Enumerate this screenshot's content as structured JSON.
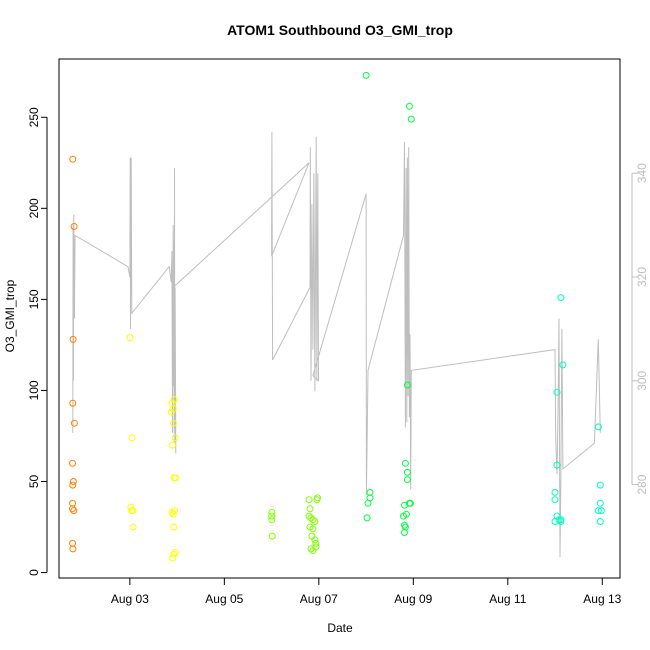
{
  "chart_data": {
    "type": "scatter",
    "title": "ATOM1 Southbound O3_GMI_trop",
    "xlabel": "Date",
    "ylabel": "O3_GMI_trop",
    "x_ticks": [
      "Aug 03",
      "Aug 05",
      "Aug 07",
      "Aug 09",
      "Aug 11",
      "Aug 13"
    ],
    "xlim": [
      "2016-08-01T12:00",
      "2016-08-13T09:00"
    ],
    "ylim": [
      -3,
      282
    ],
    "y_ticks": [
      0,
      50,
      100,
      150,
      200,
      250
    ],
    "y2lim": [
      262,
      362
    ],
    "y2_ticks": [
      280,
      300,
      320,
      340
    ],
    "grid": false,
    "colors": {
      "flight1": "#ff8000",
      "flight2": "#ffff00",
      "flight3": "#80ff00",
      "flight4": "#00ff40",
      "flight5": "#00ffbf",
      "secondary_line": "#bebebe"
    },
    "series": [
      {
        "color_key": "flight1",
        "points": [
          [
            "2016-08-01T19:00",
            227
          ],
          [
            "2016-08-01T19:10",
            128
          ],
          [
            "2016-08-01T19:00",
            93
          ],
          [
            "2016-08-01T18:50",
            60
          ],
          [
            "2016-08-01T19:00",
            48
          ],
          [
            "2016-08-01T19:20",
            50
          ],
          [
            "2016-08-01T18:55",
            38
          ],
          [
            "2016-08-01T18:50",
            35
          ],
          [
            "2016-08-01T19:30",
            34
          ],
          [
            "2016-08-01T18:55",
            16
          ],
          [
            "2016-08-01T19:05",
            13
          ],
          [
            "2016-08-01T19:40",
            190
          ],
          [
            "2016-08-01T19:50",
            82
          ]
        ]
      },
      {
        "color_key": "flight2",
        "points": [
          [
            "2016-08-03T00:00",
            129
          ],
          [
            "2016-08-03T01:00",
            74
          ],
          [
            "2016-08-03T00:30",
            36
          ],
          [
            "2016-08-03T01:00",
            34
          ],
          [
            "2016-08-03T01:30",
            34
          ],
          [
            "2016-08-03T01:40",
            25
          ],
          [
            "2016-08-03T21:00",
            88
          ],
          [
            "2016-08-03T21:30",
            93
          ],
          [
            "2016-08-03T22:00",
            90
          ],
          [
            "2016-08-03T22:30",
            95
          ],
          [
            "2016-08-03T21:40",
            70
          ],
          [
            "2016-08-03T22:10",
            82
          ],
          [
            "2016-08-03T23:00",
            74
          ],
          [
            "2016-08-03T22:30",
            52
          ],
          [
            "2016-08-03T23:10",
            52
          ],
          [
            "2016-08-03T21:30",
            33
          ],
          [
            "2016-08-03T22:00",
            32
          ],
          [
            "2016-08-03T22:40",
            34
          ],
          [
            "2016-08-03T22:20",
            25
          ],
          [
            "2016-08-03T21:40",
            8
          ],
          [
            "2016-08-03T22:20",
            10
          ],
          [
            "2016-08-03T23:00",
            11
          ]
        ]
      },
      {
        "color_key": "flight3",
        "points": [
          [
            "2016-08-06T00:00",
            31
          ],
          [
            "2016-08-06T00:10",
            33
          ],
          [
            "2016-08-06T00:05",
            29
          ],
          [
            "2016-08-06T00:20",
            20
          ],
          [
            "2016-08-06T19:00",
            40
          ],
          [
            "2016-08-06T19:30",
            35
          ],
          [
            "2016-08-06T19:00",
            31
          ],
          [
            "2016-08-06T20:00",
            30
          ],
          [
            "2016-08-06T21:00",
            29
          ],
          [
            "2016-08-06T22:00",
            28
          ],
          [
            "2016-08-06T19:30",
            25
          ],
          [
            "2016-08-06T21:00",
            24
          ],
          [
            "2016-08-06T20:30",
            20
          ],
          [
            "2016-08-06T22:00",
            18
          ],
          [
            "2016-08-06T22:30",
            16
          ],
          [
            "2016-08-06T20:00",
            13
          ],
          [
            "2016-08-06T21:00",
            12
          ],
          [
            "2016-08-06T22:30",
            14
          ],
          [
            "2016-08-06T23:00",
            40
          ],
          [
            "2016-08-06T23:20",
            41
          ]
        ]
      },
      {
        "color_key": "flight4",
        "points": [
          [
            "2016-08-08T00:00",
            273
          ],
          [
            "2016-08-08T02:00",
            44
          ],
          [
            "2016-08-08T02:00",
            41
          ],
          [
            "2016-08-08T01:00",
            38
          ],
          [
            "2016-08-08T00:30",
            30
          ],
          [
            "2016-08-08T20:00",
            60
          ],
          [
            "2016-08-08T21:00",
            55
          ],
          [
            "2016-08-08T21:00",
            51
          ],
          [
            "2016-08-08T22:00",
            38
          ],
          [
            "2016-08-08T22:30",
            38
          ],
          [
            "2016-08-08T19:30",
            37
          ],
          [
            "2016-08-08T20:30",
            32
          ],
          [
            "2016-08-08T19:00",
            31
          ],
          [
            "2016-08-08T19:30",
            26
          ],
          [
            "2016-08-08T20:00",
            25
          ],
          [
            "2016-08-08T19:30",
            22
          ],
          [
            "2016-08-08T22:00",
            256
          ],
          [
            "2016-08-08T23:00",
            249
          ],
          [
            "2016-08-08T21:00",
            103
          ]
        ]
      },
      {
        "color_key": "flight5",
        "points": [
          [
            "2016-08-12T03:00",
            151
          ],
          [
            "2016-08-12T04:00",
            114
          ],
          [
            "2016-08-12T01:00",
            99
          ],
          [
            "2016-08-12T01:00",
            59
          ],
          [
            "2016-08-12T00:00",
            44
          ],
          [
            "2016-08-12T00:00",
            40
          ],
          [
            "2016-08-12T01:00",
            31
          ],
          [
            "2016-08-12T00:00",
            28
          ],
          [
            "2016-08-12T02:00",
            29
          ],
          [
            "2016-08-12T03:00",
            28
          ],
          [
            "2016-08-12T03:00",
            29
          ],
          [
            "2016-08-12T22:00",
            80
          ],
          [
            "2016-08-12T23:00",
            48
          ],
          [
            "2016-08-12T23:00",
            38
          ],
          [
            "2016-08-12T23:30",
            34
          ],
          [
            "2016-08-12T22:00",
            34
          ],
          [
            "2016-08-12T23:00",
            28
          ]
        ]
      }
    ],
    "secondary_line": {
      "name": "",
      "points": [
        [
          "2016-08-01T19:00",
          290
        ],
        [
          "2016-08-01T19:10",
          330
        ],
        [
          "2016-08-01T19:20",
          300
        ],
        [
          "2016-08-01T19:30",
          332
        ],
        [
          "2016-08-01T19:50",
          312
        ],
        [
          "2016-08-01T20:10",
          328
        ],
        [
          "2016-08-02T23:00",
          322
        ],
        [
          "2016-08-03T00:00",
          320
        ],
        [
          "2016-08-03T00:10",
          343
        ],
        [
          "2016-08-03T00:20",
          310
        ],
        [
          "2016-08-03T00:40",
          343
        ],
        [
          "2016-08-03T01:00",
          313
        ],
        [
          "2016-08-03T20:00",
          322
        ],
        [
          "2016-08-03T21:00",
          319
        ],
        [
          "2016-08-03T21:20",
          325
        ],
        [
          "2016-08-03T21:40",
          290
        ],
        [
          "2016-08-03T22:00",
          330
        ],
        [
          "2016-08-03T22:10",
          299
        ],
        [
          "2016-08-03T22:20",
          327
        ],
        [
          "2016-08-03T22:30",
          288
        ],
        [
          "2016-08-03T22:40",
          341
        ],
        [
          "2016-08-03T22:50",
          296
        ],
        [
          "2016-08-03T23:00",
          318
        ],
        [
          "2016-08-03T23:20",
          286
        ],
        [
          "2016-08-03T22:00",
          318
        ],
        [
          "2016-08-06T19:00",
          342
        ],
        [
          "2016-08-06T00:00",
          324
        ],
        [
          "2016-08-06T00:10",
          348
        ],
        [
          "2016-08-06T00:20",
          329
        ],
        [
          "2016-08-06T00:30",
          304
        ],
        [
          "2016-08-06T19:30",
          318
        ],
        [
          "2016-08-06T19:40",
          345
        ],
        [
          "2016-08-06T20:00",
          300
        ],
        [
          "2016-08-06T20:30",
          334
        ],
        [
          "2016-08-06T21:00",
          306
        ],
        [
          "2016-08-06T21:30",
          340
        ],
        [
          "2016-08-06T22:00",
          298
        ],
        [
          "2016-08-06T22:40",
          347
        ],
        [
          "2016-08-06T23:00",
          300
        ],
        [
          "2016-08-06T23:30",
          340
        ],
        [
          "2016-08-06T23:50",
          300
        ],
        [
          "2016-08-06T21:00",
          301
        ],
        [
          "2016-08-08T00:00",
          336
        ],
        [
          "2016-08-08T00:10",
          278
        ],
        [
          "2016-08-08T00:30",
          288
        ],
        [
          "2016-08-08T01:00",
          302
        ],
        [
          "2016-08-08T19:00",
          328
        ],
        [
          "2016-08-08T19:30",
          346
        ],
        [
          "2016-08-08T20:00",
          291
        ],
        [
          "2016-08-08T20:20",
          341
        ],
        [
          "2016-08-08T20:40",
          292
        ],
        [
          "2016-08-08T21:00",
          343
        ],
        [
          "2016-08-08T21:20",
          297
        ],
        [
          "2016-08-08T21:40",
          345
        ],
        [
          "2016-08-08T22:00",
          293
        ],
        [
          "2016-08-08T22:20",
          309
        ],
        [
          "2016-08-08T22:40",
          279
        ],
        [
          "2016-08-08T23:00",
          302
        ],
        [
          "2016-08-12T00:00",
          306
        ],
        [
          "2016-08-12T00:20",
          289
        ],
        [
          "2016-08-12T01:00",
          282
        ],
        [
          "2016-08-12T01:30",
          294
        ],
        [
          "2016-08-12T02:00",
          312
        ],
        [
          "2016-08-12T02:30",
          266
        ],
        [
          "2016-08-12T03:00",
          282
        ],
        [
          "2016-08-12T03:30",
          310
        ],
        [
          "2016-08-12T04:00",
          283
        ],
        [
          "2016-08-12T20:00",
          288
        ],
        [
          "2016-08-12T22:00",
          308
        ],
        [
          "2016-08-12T23:00",
          290
        ]
      ]
    }
  }
}
